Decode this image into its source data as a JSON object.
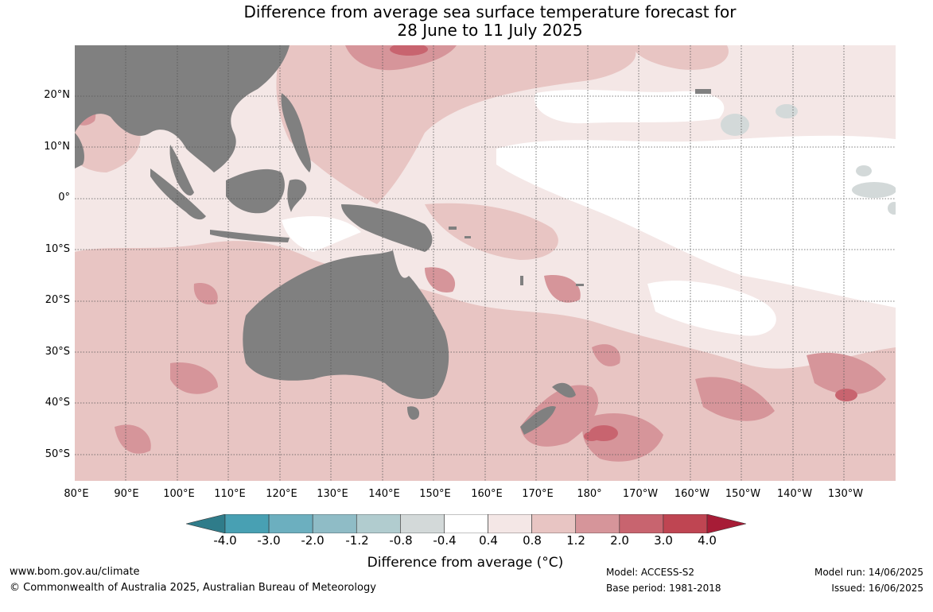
{
  "title": {
    "line1": "Difference from average sea surface temperature forecast for",
    "line2": "28 June to 11 July 2025"
  },
  "map": {
    "lat_labels": [
      "20°N",
      "10°N",
      "0°",
      "10°S",
      "20°S",
      "30°S",
      "40°S",
      "50°S"
    ],
    "lon_labels": [
      "80°E",
      "90°E",
      "100°E",
      "110°E",
      "120°E",
      "130°E",
      "140°E",
      "150°E",
      "160°E",
      "170°E",
      "180°",
      "170°W",
      "160°W",
      "150°W",
      "140°W",
      "130°W"
    ],
    "land_color": "#808080",
    "ocean_color": "#ffffff"
  },
  "colorbar": {
    "ticks": [
      "-4.0",
      "-3.0",
      "-2.0",
      "-1.2",
      "-0.8",
      "-0.4",
      "0.4",
      "0.8",
      "1.2",
      "2.0",
      "3.0",
      "4.0"
    ],
    "colors": [
      "#2f7c8a",
      "#48a0b3",
      "#6cafbf",
      "#8fbcc6",
      "#b1cccf",
      "#d3d9d9",
      "#ffffff",
      "#f4e7e6",
      "#e8c5c3",
      "#d6959a",
      "#c8646f",
      "#bf4552",
      "#a71c36"
    ],
    "label": "Difference from average (°C)"
  },
  "footer": {
    "website": "www.bom.gov.au/climate",
    "copyright": "© Commonwealth of Australia 2025, Australian Bureau of Meteorology",
    "model": "Model: ACCESS-S2",
    "base_period": "Base period: 1981-2018",
    "model_run": "Model run: 14/06/2025",
    "issued": "Issued: 16/06/2025"
  }
}
